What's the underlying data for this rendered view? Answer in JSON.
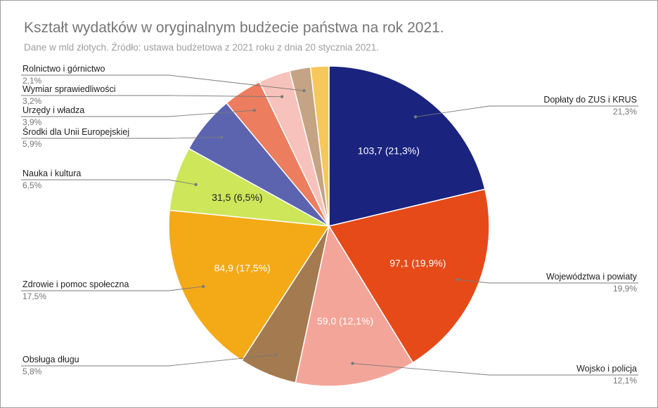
{
  "chart_data": {
    "type": "pie",
    "title": "Kształt wydatków w oryginalnym budżecie państwa na rok 2021.",
    "subtitle": "Dane w mld złotych. Źródło: ustawa budżetowa z 2021 roku z dnia 20 stycznia 2021.",
    "slices": [
      {
        "label": "Dopłaty do ZUS i KRUS",
        "value": 103.7,
        "percent_text": "21,3%",
        "inner_text": "103,7 (21,3%)",
        "color": "#1a237e",
        "inner_color": "#ffffff"
      },
      {
        "label": "Województwa i powiaty",
        "value": 97.1,
        "percent_text": "19,9%",
        "inner_text": "97,1 (19,9%)",
        "color": "#e64a19",
        "inner_color": "#ffffff"
      },
      {
        "label": "Wojsko i policja",
        "value": 59.0,
        "percent_text": "12,1%",
        "inner_text": "59,0 (12,1%)",
        "color": "#f4a599",
        "inner_color": "#ffffff"
      },
      {
        "label": "Obsługa długu",
        "value": 28.2,
        "percent_text": "5,8%",
        "inner_text": "",
        "color": "#a47a50",
        "inner_color": "#ffffff"
      },
      {
        "label": "Zdrowie i pomoc społeczna",
        "value": 84.9,
        "percent_text": "17,5%",
        "inner_text": "84,9 (17,5%)",
        "color": "#f4a917",
        "inner_color": "#ffffff"
      },
      {
        "label": "Nauka i kultura",
        "value": 31.5,
        "percent_text": "6,5%",
        "inner_text": "31,5 (6,5%)",
        "color": "#cde65a",
        "inner_color": "#212121"
      },
      {
        "label": "Środki dla Unii Europejskiej",
        "value": 28.7,
        "percent_text": "5,9%",
        "inner_text": "",
        "color": "#5c64b0",
        "inner_color": "#ffffff"
      },
      {
        "label": "Urzędy i władza",
        "value": 19.0,
        "percent_text": "3,9%",
        "inner_text": "",
        "color": "#ec7d5f",
        "inner_color": "#ffffff"
      },
      {
        "label": "Wymiar sprawiedliwości",
        "value": 15.6,
        "percent_text": "3,2%",
        "inner_text": "",
        "color": "#f7c2bb",
        "inner_color": "#ffffff"
      },
      {
        "label": "Rolnictwo i górnictwo",
        "value": 10.2,
        "percent_text": "2,1%",
        "inner_text": "",
        "color": "#c4a484",
        "inner_color": "#ffffff"
      },
      {
        "label": "",
        "value": 9.0,
        "percent_text": "",
        "inner_text": "",
        "color": "#f6c75a",
        "inner_color": "#ffffff"
      }
    ],
    "legend": "callouts"
  }
}
